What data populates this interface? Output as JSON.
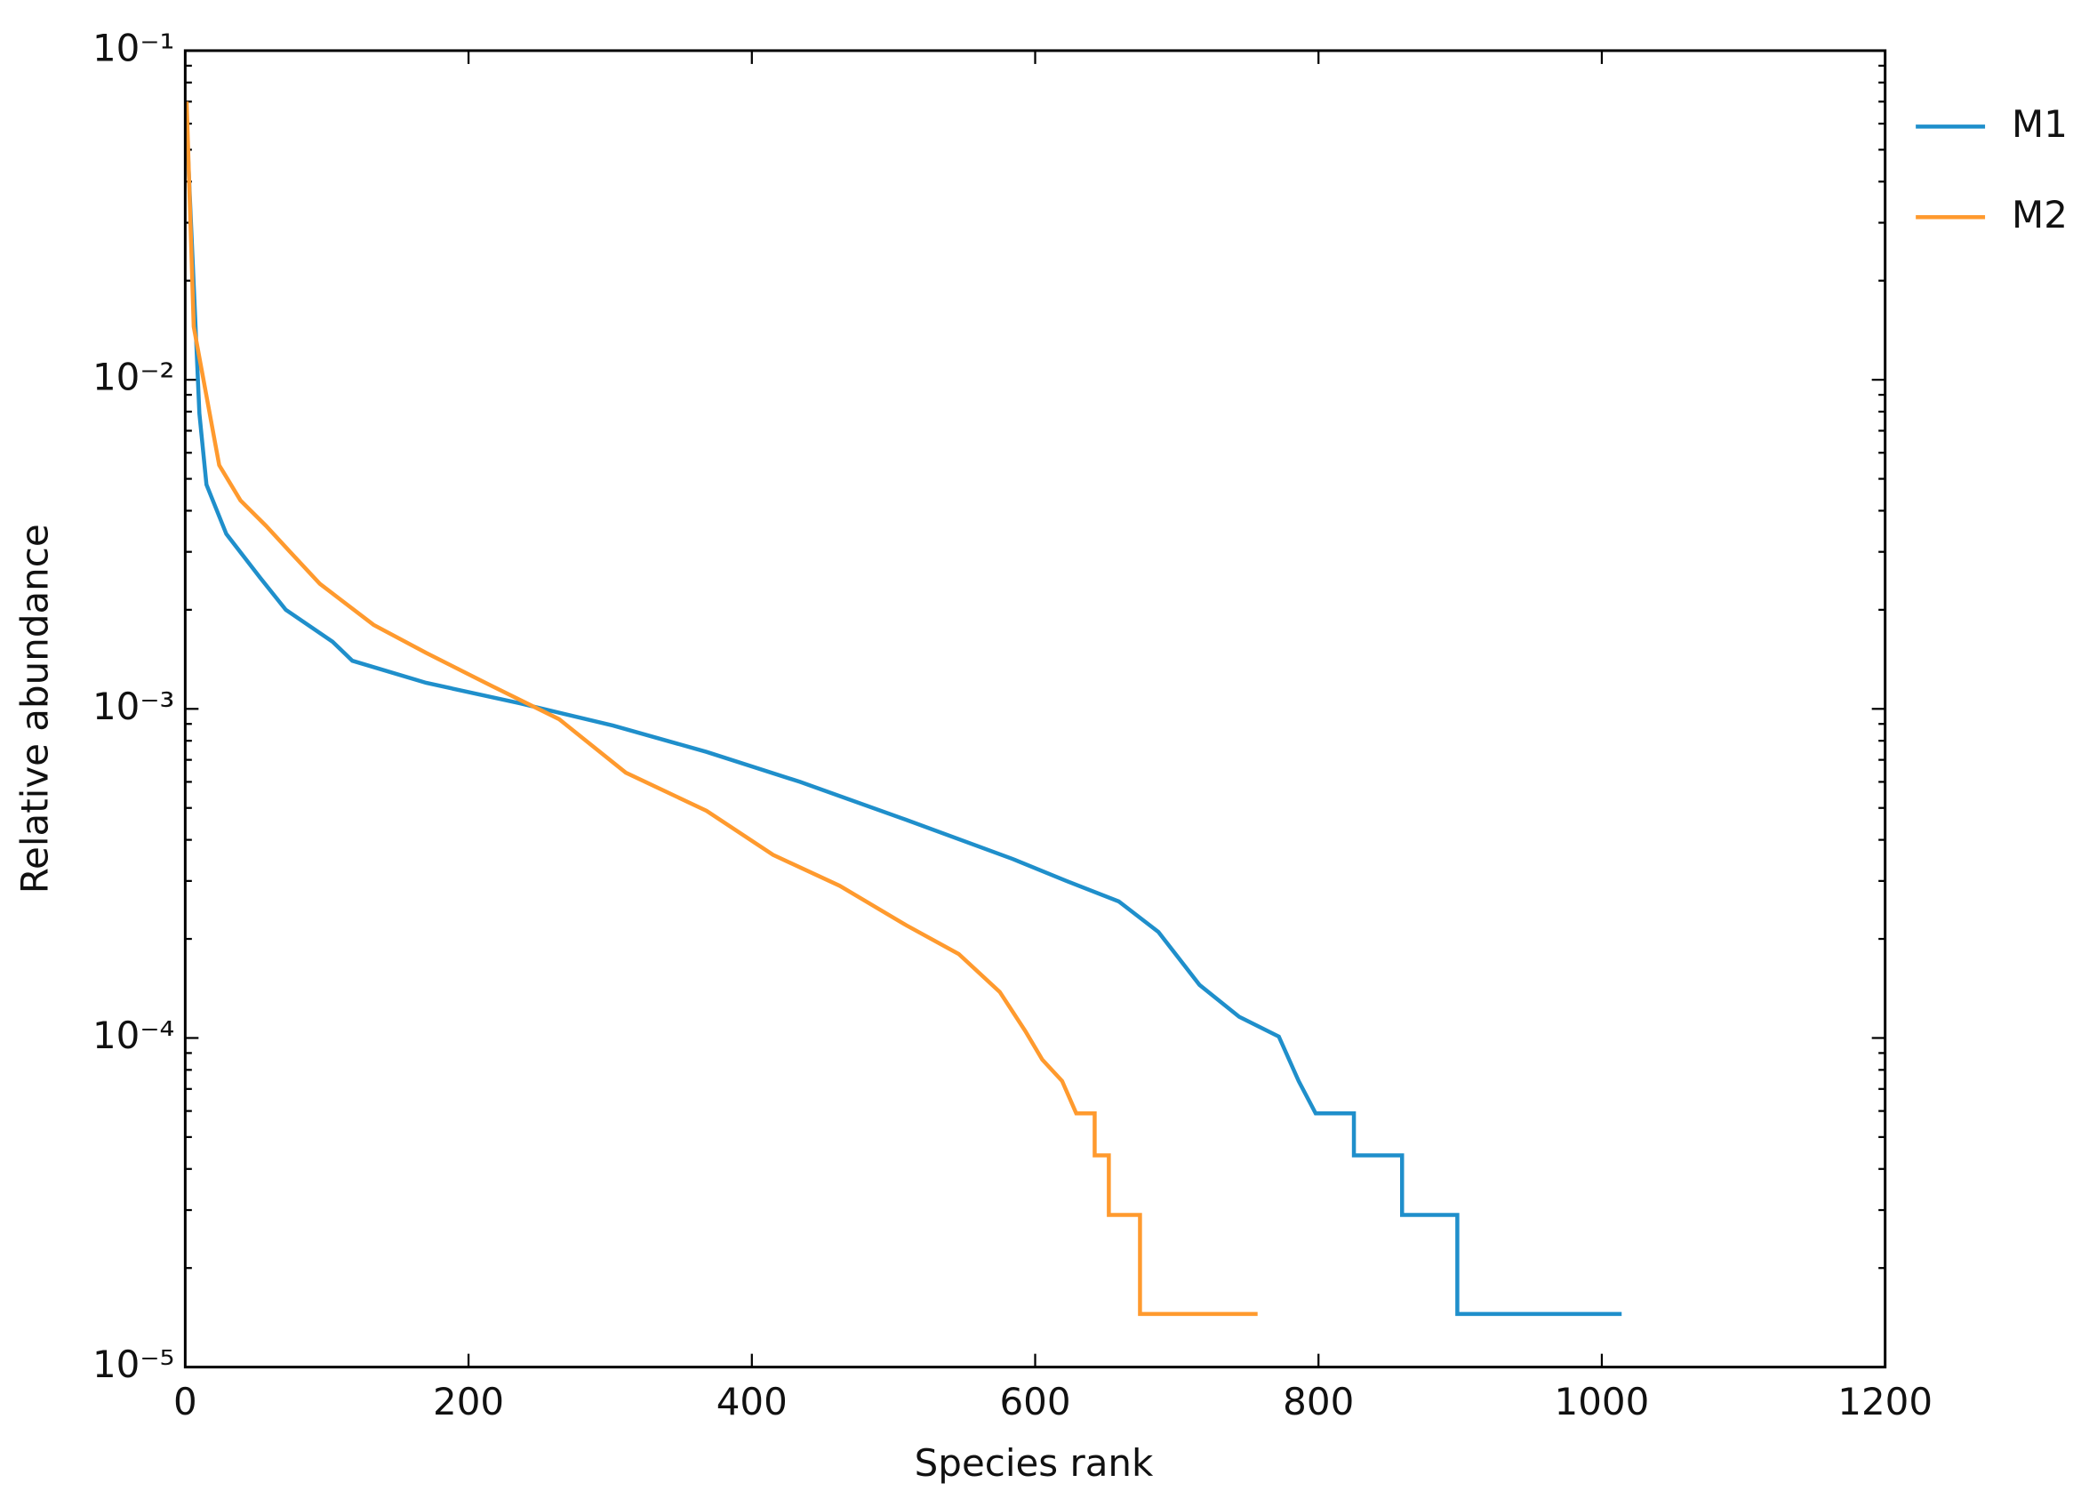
{
  "chart_data": {
    "type": "line",
    "xlabel": "Species rank",
    "ylabel": "Relative abundance",
    "xlim": [
      0,
      1200
    ],
    "xticks": [
      0,
      200,
      400,
      600,
      800,
      1000,
      1200
    ],
    "ylim": [
      1e-05,
      0.1
    ],
    "log_y": true,
    "yticks": [
      {
        "value": 1e-05,
        "label": "10⁻⁵"
      },
      {
        "value": 0.0001,
        "label": "10⁻⁴"
      },
      {
        "value": 0.001,
        "label": "10⁻³"
      },
      {
        "value": 0.01,
        "label": "10⁻²"
      },
      {
        "value": 0.1,
        "label": "10⁻¹"
      }
    ],
    "legend": "outside-upper-right",
    "series": [
      {
        "name": "M1",
        "color": "#1f8fcb",
        "x": [
          1,
          10,
          15,
          29,
          53,
          71,
          104,
          118,
          170,
          236,
          302,
          368,
          434,
          509,
          584,
          622,
          659,
          687,
          716,
          744,
          772,
          786,
          798,
          825,
          825,
          859,
          859,
          898,
          898,
          1014
        ],
        "values": [
          0.06,
          0.0079,
          0.0048,
          0.0034,
          0.0025,
          0.002,
          0.0016,
          0.0014,
          0.0012,
          0.00104,
          0.00089,
          0.00074,
          0.0006,
          0.00046,
          0.00035,
          0.0003,
          0.00026,
          0.00021,
          0.000145,
          0.000116,
          0.000101,
          7.4e-05,
          5.9e-05,
          5.9e-05,
          4.4e-05,
          4.4e-05,
          2.9e-05,
          2.9e-05,
          1.45e-05,
          1.45e-05
        ]
      },
      {
        "name": "M2",
        "color": "#ff9a2e",
        "x": [
          1,
          6,
          24,
          39,
          57,
          74,
          95,
          133,
          170,
          217,
          264,
          311,
          368,
          415,
          462,
          509,
          546,
          575,
          593,
          605,
          619,
          629,
          642,
          642,
          652,
          652,
          674,
          674,
          757
        ],
        "values": [
          0.07,
          0.0145,
          0.0055,
          0.0043,
          0.0036,
          0.003,
          0.0024,
          0.0018,
          0.00148,
          0.00117,
          0.00093,
          0.00064,
          0.00049,
          0.00036,
          0.00029,
          0.00022,
          0.00018,
          0.000138,
          0.000105,
          8.6e-05,
          7.4e-05,
          5.9e-05,
          5.9e-05,
          4.4e-05,
          4.4e-05,
          2.9e-05,
          2.9e-05,
          1.45e-05,
          1.45e-05
        ]
      }
    ]
  }
}
